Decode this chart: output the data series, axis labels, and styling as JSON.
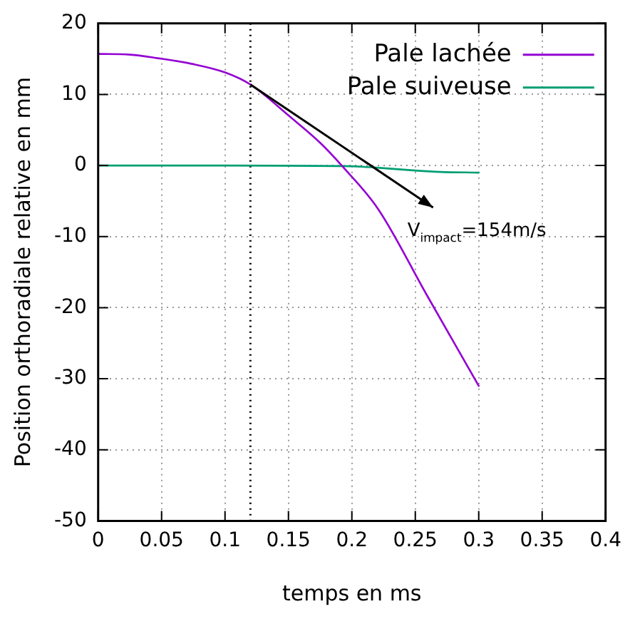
{
  "chart_data": {
    "type": "line",
    "xlabel": "temps en ms",
    "ylabel": "Position orthoradiale relative en mm",
    "xlim": [
      0,
      0.4
    ],
    "xticks": [
      0,
      0.05,
      0.1,
      0.15,
      0.2,
      0.25,
      0.3,
      0.35,
      0.4
    ],
    "ylim": [
      -50,
      20
    ],
    "yticks": [
      -50,
      -40,
      -30,
      -20,
      -10,
      0,
      10,
      20
    ],
    "grid": true,
    "legend": "top right",
    "marker": "none",
    "line_style": "solid",
    "series": [
      {
        "name": "Pale lachée",
        "color": "#9400d3",
        "x": [
          0,
          0.025,
          0.047,
          0.074,
          0.1,
          0.12,
          0.151,
          0.175,
          0.192,
          0.221,
          0.259,
          0.3
        ],
        "values": [
          15.7,
          15.6,
          15.1,
          14.3,
          13.1,
          11.4,
          6.9,
          3.2,
          0,
          -6.2,
          -18.2,
          -31
        ]
      },
      {
        "name": "Pale suiveuse",
        "color": "#009e73",
        "x": [
          0,
          0.1,
          0.2,
          0.22,
          0.25,
          0.27,
          0.3
        ],
        "values": [
          0,
          0,
          -0.1,
          -0.3,
          -0.7,
          -0.9,
          -1
        ]
      }
    ],
    "ref_lines": [
      {
        "axis": "x",
        "value": 0.12,
        "color": "#000000",
        "line_style": "dotted"
      }
    ],
    "annotations": [
      "V$_{impact}$=154m/s"
    ]
  }
}
